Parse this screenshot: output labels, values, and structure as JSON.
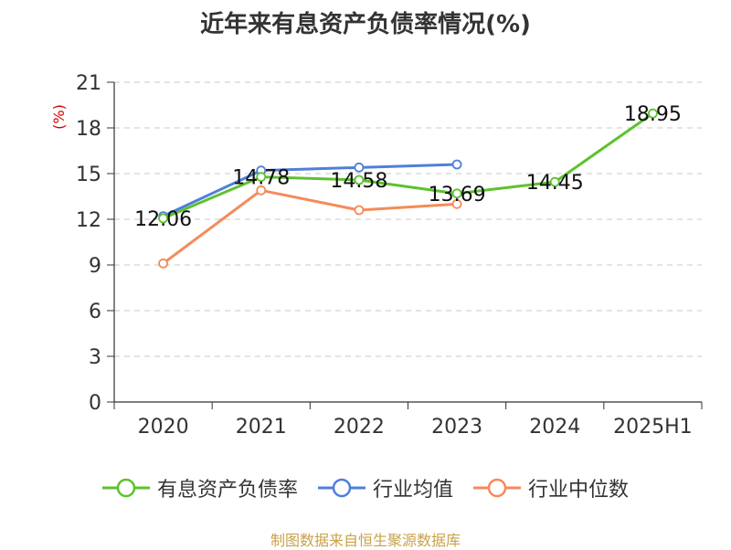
{
  "title": "近年来有息资产负债率情况(%)",
  "source": "制图数据来自恒生聚源数据库",
  "colors": {
    "有息资产负债率": "#5dc22e",
    "行业均值": "#4f7fd9",
    "行业中位数": "#f48b5a",
    "unit": "#d40000"
  },
  "chart_data": {
    "type": "line",
    "title": "近年来有息资产负债率情况(%)",
    "ylabel": "(%)",
    "xlabel": "",
    "categories": [
      "2020",
      "2021",
      "2022",
      "2023",
      "2024",
      "2025H1"
    ],
    "ylim": [
      0,
      21
    ],
    "yticks": [
      0,
      3,
      6,
      9,
      12,
      15,
      18,
      21
    ],
    "grid": true,
    "legend": "bottom",
    "series": [
      {
        "name": "有息资产负债率",
        "values": [
          12.06,
          14.78,
          14.58,
          13.69,
          14.45,
          18.95
        ],
        "labels": true
      },
      {
        "name": "行业均值",
        "values": [
          12.2,
          15.2,
          15.4,
          15.6,
          null,
          null
        ],
        "labels": false
      },
      {
        "name": "行业中位数",
        "values": [
          9.1,
          13.9,
          12.6,
          13.0,
          null,
          null
        ],
        "labels": false
      }
    ]
  }
}
